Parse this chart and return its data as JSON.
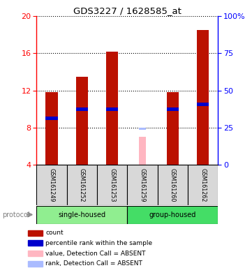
{
  "title": "GDS3227 / 1628585_at",
  "samples": [
    "GSM161249",
    "GSM161252",
    "GSM161253",
    "GSM161259",
    "GSM161260",
    "GSM161262"
  ],
  "count_values": [
    11.8,
    13.5,
    16.2,
    null,
    11.8,
    18.5
  ],
  "percentile_values": [
    9.0,
    10.0,
    10.0,
    null,
    10.0,
    10.5
  ],
  "absent_value": 7.0,
  "absent_rank": 7.9,
  "ylim_left": [
    4,
    20
  ],
  "yticks_left": [
    4,
    8,
    12,
    16,
    20
  ],
  "yticks_right": [
    0,
    25,
    50,
    75,
    100
  ],
  "ytick_labels_right": [
    "0",
    "25",
    "50",
    "75",
    "100%"
  ],
  "bar_color": "#BB1100",
  "percentile_color": "#0000CC",
  "absent_bar_color": "#FFB6C1",
  "absent_rank_color": "#AABBFF",
  "bar_width": 0.4,
  "sample_box_color": "#D8D8D8",
  "single_housed_color": "#90EE90",
  "group_housed_color": "#44DD66",
  "legend_items": [
    {
      "color": "#BB1100",
      "label": "count"
    },
    {
      "color": "#0000CC",
      "label": "percentile rank within the sample"
    },
    {
      "color": "#FFB6C1",
      "label": "value, Detection Call = ABSENT"
    },
    {
      "color": "#AABBFF",
      "label": "rank, Detection Call = ABSENT"
    }
  ]
}
